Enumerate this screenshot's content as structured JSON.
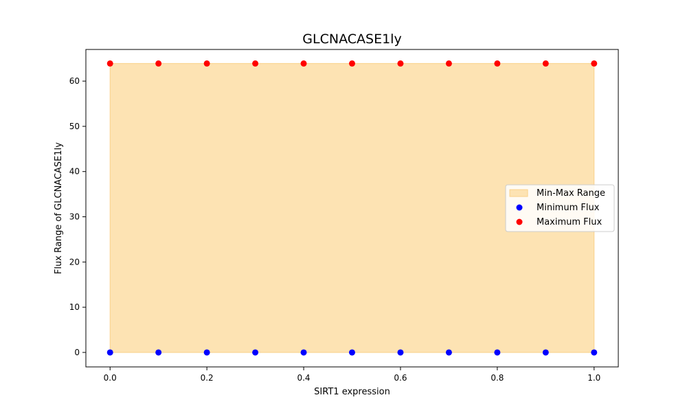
{
  "chart_data": {
    "type": "scatter",
    "title": "GLCNACASE1ly",
    "xlabel": "SIRT1 expression",
    "ylabel": "Flux Range of GLCNACASE1ly",
    "xlim": [
      -0.05,
      1.05
    ],
    "ylim": [
      -3.2,
      67.0
    ],
    "xticks": [
      0.0,
      0.2,
      0.4,
      0.6,
      0.8,
      1.0
    ],
    "xtick_labels": [
      "0.0",
      "0.2",
      "0.4",
      "0.6",
      "0.8",
      "1.0"
    ],
    "yticks": [
      0,
      10,
      20,
      30,
      40,
      50,
      60
    ],
    "ytick_labels": [
      "0",
      "10",
      "20",
      "30",
      "40",
      "50",
      "60"
    ],
    "x": [
      0.0,
      0.1,
      0.2,
      0.3,
      0.4,
      0.5,
      0.6,
      0.7,
      0.8,
      0.9,
      1.0
    ],
    "series": [
      {
        "name": "Minimum Flux",
        "color": "#0000ff",
        "values": [
          0,
          0,
          0,
          0,
          0,
          0,
          0,
          0,
          0,
          0,
          0
        ]
      },
      {
        "name": "Maximum Flux",
        "color": "#ff0000",
        "values": [
          63.9,
          63.9,
          63.9,
          63.9,
          63.9,
          63.9,
          63.9,
          63.9,
          63.9,
          63.9,
          63.9
        ]
      }
    ],
    "range_fill": {
      "name": "Min-Max Range",
      "color": "#fde3b3",
      "edge_color": "#f9d28a"
    },
    "grid": false,
    "legend": {
      "placement": "center-right",
      "entries": [
        "Min-Max Range",
        "Minimum Flux",
        "Maximum Flux"
      ]
    }
  }
}
